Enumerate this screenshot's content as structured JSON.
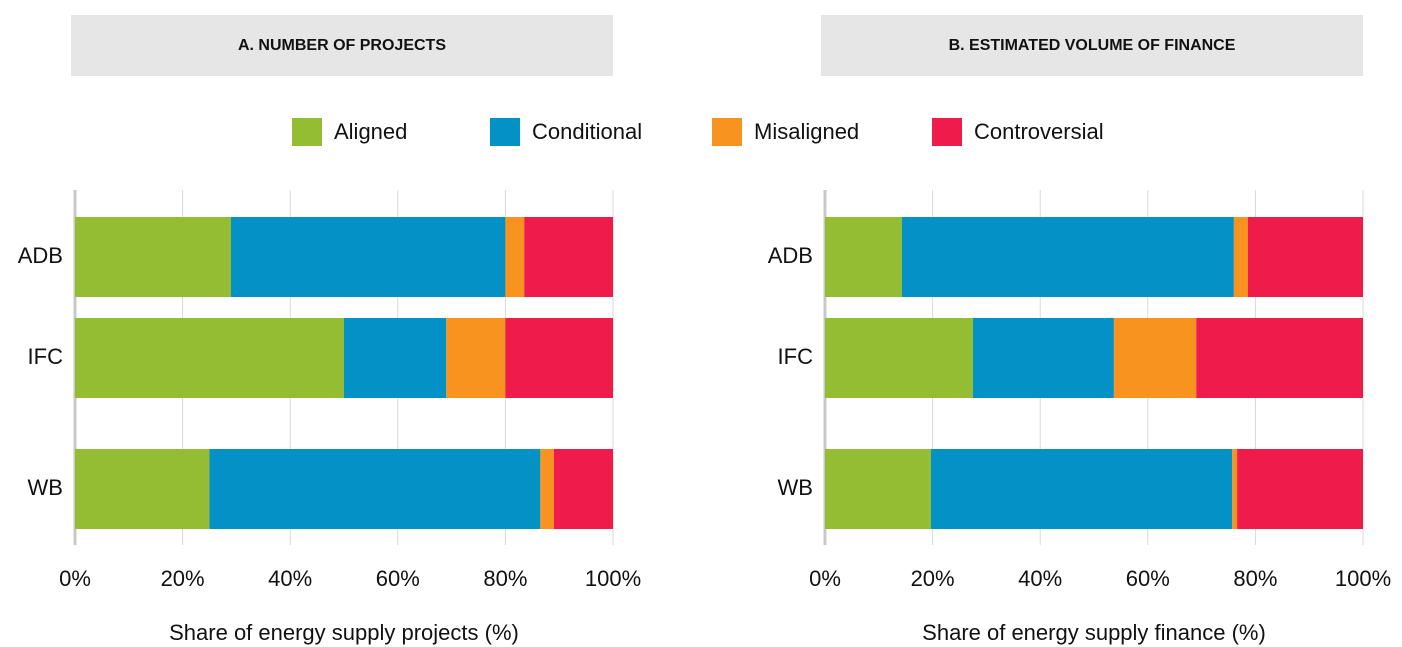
{
  "chart_data": [
    {
      "type": "stacked_barh",
      "title": "A. NUMBER OF PROJECTS",
      "xlabel": "Share of energy supply projects (%)",
      "categories": [
        "ADB",
        "IFC",
        "WB"
      ],
      "series": [
        {
          "name": "Aligned",
          "color": "#95bd34",
          "values": [
            29,
            50,
            25
          ]
        },
        {
          "name": "Conditional",
          "color": "#0391c6",
          "values": [
            51,
            19,
            61.5
          ]
        },
        {
          "name": "Misaligned",
          "color": "#f7931e",
          "values": [
            3.5,
            11,
            2.5
          ]
        },
        {
          "name": "Controversial",
          "color": "#ee1b4b",
          "values": [
            16.5,
            20,
            11
          ]
        }
      ],
      "xlim": [
        0,
        100
      ],
      "xticks": [
        {
          "value": 0,
          "label": "0%"
        },
        {
          "value": 20,
          "label": "20%"
        },
        {
          "value": 40,
          "label": "40%"
        },
        {
          "value": 60,
          "label": "60%"
        },
        {
          "value": 80,
          "label": "80%"
        },
        {
          "value": 100,
          "label": "100%"
        }
      ],
      "grid": true
    },
    {
      "type": "stacked_barh",
      "title": "B. ESTIMATED VOLUME OF FINANCE",
      "xlabel": "Share of energy supply finance (%)",
      "categories": [
        "ADB",
        "IFC",
        "WB"
      ],
      "series": [
        {
          "color": "#95bd34",
          "values": [
            14.3,
            27.5,
            19.7
          ]
        },
        {
          "color": "#0391c6",
          "values": [
            61.7,
            26.2,
            56
          ]
        },
        {
          "color": "#f7931e",
          "values": [
            2.6,
            15.3,
            0.9
          ]
        },
        {
          "color": "#ee1b4b",
          "values": [
            21.4,
            31,
            23.4
          ]
        }
      ],
      "xlim": [
        0,
        100
      ],
      "xticks": [
        {
          "value": 0,
          "label": "0%"
        },
        {
          "value": 20,
          "label": "20%"
        },
        {
          "value": 40,
          "label": "40%"
        },
        {
          "value": 60,
          "label": "60%"
        },
        {
          "value": 80,
          "label": "80%"
        },
        {
          "value": 100,
          "label": "100%"
        }
      ],
      "grid": true
    }
  ]
}
